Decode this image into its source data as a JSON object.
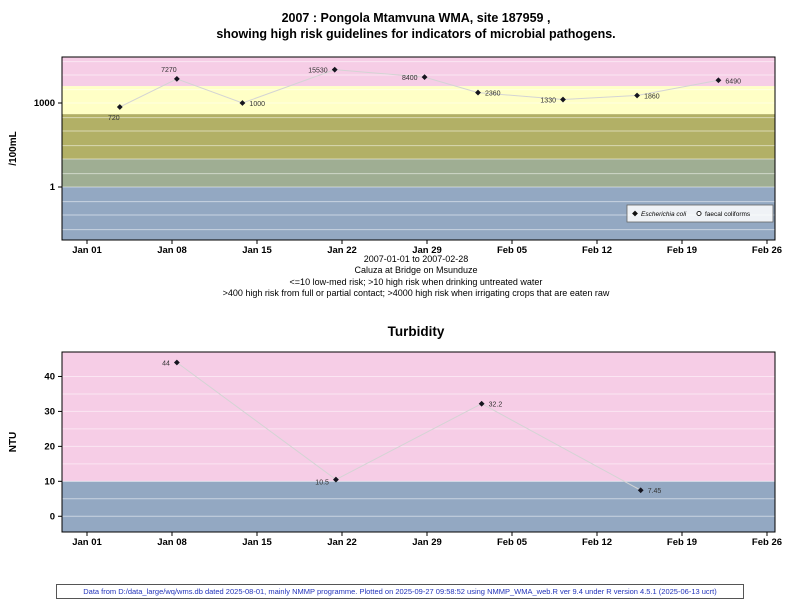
{
  "page": {
    "footer_note": "Data from D:/data_large/wq/wms.db dated 2025-08-01, mainly NMMP programme. Plotted on 2025-09-27 09:58:52 using NMMP_WMA_web.R ver 9.4 under R version 4.5.1 (2025-06-13 ucrt)"
  },
  "chart_data": [
    {
      "type": "scatter",
      "title_lines": [
        "2007 : Pongola Mtamvuna WMA, site 187959 ,",
        "showing high risk guidelines for indicators of microbial pathogens."
      ],
      "ylabel": "/100mL",
      "yscale": "log",
      "ylim": [
        0.0128,
        44000
      ],
      "xlim": [
        -2.06,
        56.66
      ],
      "xticks": [
        {
          "day": 0,
          "label": "Jan 01"
        },
        {
          "day": 7,
          "label": "Jan 08"
        },
        {
          "day": 14,
          "label": "Jan 15"
        },
        {
          "day": 21,
          "label": "Jan 22"
        },
        {
          "day": 28,
          "label": "Jan 29"
        },
        {
          "day": 35,
          "label": "Feb 05"
        },
        {
          "day": 42,
          "label": "Feb 12"
        },
        {
          "day": 49,
          "label": "Feb 19"
        },
        {
          "day": 56,
          "label": "Feb 26"
        }
      ],
      "yticks": [
        {
          "value": 1000,
          "label": "1000"
        },
        {
          "value": 1,
          "label": "1"
        }
      ],
      "gridlines": [
        30000,
        10000,
        3000,
        1000,
        300,
        100,
        30,
        10,
        3,
        1,
        0.3,
        0.1,
        0.03
      ],
      "bands": [
        {
          "min": 4000,
          "max": 44000,
          "color": "#f6cde6"
        },
        {
          "min": 400,
          "max": 4000,
          "color": "#ffffc6"
        },
        {
          "min": 10,
          "max": 400,
          "color": "#b2b066"
        },
        {
          "min": 1,
          "max": 10,
          "color": "#9fae93"
        },
        {
          "min": 0.0128,
          "max": 1,
          "color": "#93a8c2"
        }
      ],
      "series": [
        {
          "name": "Escherichia coli",
          "marker": "filled-diamond",
          "color": "#15151f",
          "line_color": "#d4d4d4",
          "points": [
            {
              "x": 2.7,
              "value": 720,
              "label": "720",
              "dx": -6,
              "dy": 13,
              "anchor": "middle"
            },
            {
              "x": 7.4,
              "value": 7270,
              "label": "7270",
              "dx": -8,
              "dy": -7,
              "anchor": "middle"
            },
            {
              "x": 12.8,
              "value": 1000,
              "label": "1000",
              "dx": 7,
              "dy": 3,
              "anchor": "start"
            },
            {
              "x": 20.4,
              "value": 15530,
              "label": "15530",
              "dx": -7,
              "dy": 3,
              "anchor": "end"
            },
            {
              "x": 27.8,
              "value": 8400,
              "label": "8400",
              "dx": -7,
              "dy": 3,
              "anchor": "end"
            },
            {
              "x": 32.2,
              "value": 2360,
              "label": "2360",
              "dx": 7,
              "dy": 3,
              "anchor": "start"
            },
            {
              "x": 39.2,
              "value": 1330,
              "label": "1330",
              "dx": -7,
              "dy": 3,
              "anchor": "end"
            },
            {
              "x": 45.3,
              "value": 1860,
              "label": "1860",
              "dx": 7,
              "dy": 3,
              "anchor": "start"
            },
            {
              "x": 52,
              "value": 6490,
              "label": "6490",
              "dx": 7,
              "dy": 3,
              "anchor": "start"
            }
          ]
        },
        {
          "name": "faecal coliforms",
          "marker": "open-circle",
          "color": "#15151f",
          "line_color": "#d4d4d4",
          "points": []
        }
      ],
      "legend": {
        "items": [
          {
            "label": "Escherichia coli",
            "marker": "filled-diamond",
            "italic": true
          },
          {
            "label": "faecal coliforms",
            "marker": "open-circle",
            "italic": false
          }
        ]
      },
      "captions": [
        "2007-01-01 to 2007-02-28",
        "Caluza at Bridge on Msunduze",
        "<=10 low-med risk; >10 high risk when drinking untreated water",
        ">400 high risk from full or partial contact; >4000 high risk when irrigating crops that are eaten raw"
      ]
    },
    {
      "type": "scatter",
      "title": "Turbidity",
      "ylabel": "NTU",
      "yscale": "linear",
      "ylim": [
        -4.5,
        47
      ],
      "xlim": [
        -2.06,
        56.66
      ],
      "xticks": [
        {
          "day": 0,
          "label": "Jan 01"
        },
        {
          "day": 7,
          "label": "Jan 08"
        },
        {
          "day": 14,
          "label": "Jan 15"
        },
        {
          "day": 21,
          "label": "Jan 22"
        },
        {
          "day": 28,
          "label": "Jan 29"
        },
        {
          "day": 35,
          "label": "Feb 05"
        },
        {
          "day": 42,
          "label": "Feb 12"
        },
        {
          "day": 49,
          "label": "Feb 19"
        },
        {
          "day": 56,
          "label": "Feb 26"
        }
      ],
      "yticks": [
        {
          "value": 0,
          "label": "0"
        },
        {
          "value": 10,
          "label": "10"
        },
        {
          "value": 20,
          "label": "20"
        },
        {
          "value": 30,
          "label": "30"
        },
        {
          "value": 40,
          "label": "40"
        }
      ],
      "gridlines": [
        0,
        5,
        10,
        15,
        20,
        25,
        30,
        35,
        40
      ],
      "bands": [
        {
          "min": 10,
          "max": 47,
          "color": "#f6cde6"
        },
        {
          "min": -4.5,
          "max": 10,
          "color": "#93a8c2"
        }
      ],
      "series": [
        {
          "name": "Turbidity",
          "marker": "filled-diamond",
          "color": "#15151f",
          "line_color": "#d4d4d4",
          "points": [
            {
              "x": 7.4,
              "value": 44,
              "label": "44",
              "dx": -7,
              "dy": 3,
              "anchor": "end"
            },
            {
              "x": 20.5,
              "value": 10.5,
              "label": "10.5",
              "dx": -7,
              "dy": 5,
              "anchor": "end"
            },
            {
              "x": 32.5,
              "value": 32.2,
              "label": "32.2",
              "dx": 7,
              "dy": 3,
              "anchor": "start"
            },
            {
              "x": 45.6,
              "value": 7.45,
              "label": "7.45",
              "dx": 7,
              "dy": 3,
              "anchor": "start"
            }
          ]
        }
      ]
    }
  ]
}
